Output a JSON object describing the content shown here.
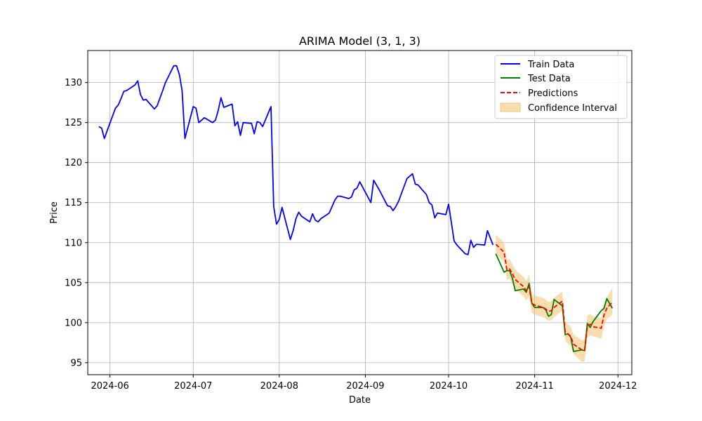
{
  "chart_data": {
    "type": "line",
    "title": "ARIMA Model (3, 1, 3)",
    "xlabel": "Date",
    "ylabel": "Price",
    "xlim": [
      "2024-05-24",
      "2024-12-06"
    ],
    "ylim": [
      93.5,
      134
    ],
    "x_ticks": [
      "2024-06-01",
      "2024-07-01",
      "2024-08-01",
      "2024-09-01",
      "2024-10-01",
      "2024-11-01",
      "2024-12-01"
    ],
    "x_tick_labels": [
      "2024-06",
      "2024-07",
      "2024-08",
      "2024-09",
      "2024-10",
      "2024-11",
      "2024-12"
    ],
    "y_ticks": [
      95,
      100,
      105,
      110,
      115,
      120,
      125,
      130
    ],
    "y_tick_labels": [
      "95",
      "100",
      "105",
      "110",
      "115",
      "120",
      "125",
      "130"
    ],
    "grid": true,
    "legend_position": "top-right",
    "legend": [
      "Train Data",
      "Test Data",
      "Predictions",
      "Confidence Interval"
    ],
    "colors": {
      "train": "#0000ff",
      "test": "#008000",
      "predictions": "#ff0000",
      "ci": "#f5c77a"
    },
    "series": [
      {
        "name": "Train Data",
        "x": [
          "2024-05-28",
          "2024-05-29",
          "2024-05-30",
          "2024-05-31",
          "2024-06-03",
          "2024-06-04",
          "2024-06-05",
          "2024-06-06",
          "2024-06-07",
          "2024-06-10",
          "2024-06-11",
          "2024-06-12",
          "2024-06-13",
          "2024-06-14",
          "2024-06-17",
          "2024-06-18",
          "2024-06-20",
          "2024-06-21",
          "2024-06-24",
          "2024-06-25",
          "2024-06-26",
          "2024-06-27",
          "2024-06-28",
          "2024-07-01",
          "2024-07-02",
          "2024-07-03",
          "2024-07-05",
          "2024-07-08",
          "2024-07-09",
          "2024-07-10",
          "2024-07-11",
          "2024-07-12",
          "2024-07-15",
          "2024-07-16",
          "2024-07-17",
          "2024-07-18",
          "2024-07-19",
          "2024-07-22",
          "2024-07-23",
          "2024-07-24",
          "2024-07-25",
          "2024-07-26",
          "2024-07-29",
          "2024-07-30",
          "2024-07-31",
          "2024-08-01",
          "2024-08-02",
          "2024-08-05",
          "2024-08-06",
          "2024-08-07",
          "2024-08-08",
          "2024-08-09",
          "2024-08-12",
          "2024-08-13",
          "2024-08-14",
          "2024-08-15",
          "2024-08-16",
          "2024-08-19",
          "2024-08-20",
          "2024-08-21",
          "2024-08-22",
          "2024-08-23",
          "2024-08-26",
          "2024-08-27",
          "2024-08-28",
          "2024-08-29",
          "2024-08-30",
          "2024-09-03",
          "2024-09-04",
          "2024-09-05",
          "2024-09-06",
          "2024-09-09",
          "2024-09-10",
          "2024-09-11",
          "2024-09-12",
          "2024-09-13",
          "2024-09-16",
          "2024-09-17",
          "2024-09-18",
          "2024-09-19",
          "2024-09-20",
          "2024-09-23",
          "2024-09-24",
          "2024-09-25",
          "2024-09-26",
          "2024-09-27",
          "2024-09-30",
          "2024-10-01",
          "2024-10-02",
          "2024-10-03",
          "2024-10-04",
          "2024-10-07",
          "2024-10-08",
          "2024-10-09",
          "2024-10-10",
          "2024-10-11",
          "2024-10-14",
          "2024-10-15",
          "2024-10-16",
          "2024-10-17"
        ],
        "y": [
          124.5,
          124.3,
          123.0,
          124.0,
          126.8,
          127.2,
          128.0,
          128.9,
          129.0,
          129.7,
          130.2,
          128.5,
          127.8,
          127.9,
          126.7,
          127.1,
          129.0,
          130.0,
          132.1,
          132.1,
          131.0,
          129.0,
          123.0,
          127.0,
          126.8,
          125.0,
          125.6,
          125.0,
          125.3,
          126.5,
          128.1,
          126.9,
          127.3,
          124.6,
          125.1,
          123.4,
          125.0,
          124.9,
          123.6,
          125.1,
          125.0,
          124.5,
          127.0,
          114.5,
          112.3,
          112.9,
          114.4,
          110.4,
          111.5,
          113.0,
          113.8,
          113.3,
          112.6,
          113.6,
          112.8,
          112.6,
          113.0,
          113.7,
          114.5,
          115.3,
          115.8,
          115.8,
          115.5,
          115.7,
          116.6,
          116.8,
          117.6,
          115.0,
          117.8,
          117.2,
          116.6,
          114.6,
          114.5,
          114.0,
          114.5,
          115.2,
          118.0,
          118.3,
          118.6,
          117.3,
          117.2,
          116.0,
          115.0,
          114.7,
          113.1,
          113.7,
          113.5,
          114.8,
          112.5,
          110.2,
          109.7,
          108.6,
          108.5,
          110.3,
          109.4,
          109.8,
          109.7,
          111.5,
          110.6,
          109.7
        ]
      },
      {
        "name": "Test Data",
        "x": [
          "2024-10-18",
          "2024-10-21",
          "2024-10-22",
          "2024-10-23",
          "2024-10-24",
          "2024-10-25",
          "2024-10-28",
          "2024-10-29",
          "2024-10-30",
          "2024-10-31",
          "2024-11-01",
          "2024-11-04",
          "2024-11-05",
          "2024-11-06",
          "2024-11-07",
          "2024-11-08",
          "2024-11-11",
          "2024-11-12",
          "2024-11-13",
          "2024-11-14",
          "2024-11-15",
          "2024-11-18",
          "2024-11-19",
          "2024-11-20",
          "2024-11-21",
          "2024-11-22",
          "2024-11-25",
          "2024-11-26",
          "2024-11-27",
          "2024-11-29"
        ],
        "y": [
          108.6,
          106.3,
          106.5,
          106.5,
          105.5,
          104.0,
          104.2,
          103.8,
          104.9,
          102.4,
          101.9,
          101.9,
          101.6,
          100.8,
          101.0,
          102.9,
          102.1,
          98.5,
          98.6,
          98.2,
          96.4,
          96.6,
          96.5,
          99.9,
          99.4,
          100.1,
          101.5,
          101.8,
          103.0,
          101.8
        ]
      },
      {
        "name": "Predictions",
        "x": [
          "2024-10-18",
          "2024-10-21",
          "2024-10-22",
          "2024-10-23",
          "2024-10-24",
          "2024-10-25",
          "2024-10-28",
          "2024-10-29",
          "2024-10-30",
          "2024-10-31",
          "2024-11-01",
          "2024-11-04",
          "2024-11-05",
          "2024-11-06",
          "2024-11-07",
          "2024-11-08",
          "2024-11-11",
          "2024-11-12",
          "2024-11-13",
          "2024-11-14",
          "2024-11-15",
          "2024-11-18",
          "2024-11-19",
          "2024-11-20",
          "2024-11-21",
          "2024-11-22",
          "2024-11-25",
          "2024-11-26",
          "2024-11-27",
          "2024-11-29"
        ],
        "y": [
          109.8,
          108.8,
          106.6,
          106.7,
          106.1,
          105.4,
          104.5,
          104.0,
          104.5,
          102.4,
          102.2,
          101.9,
          101.7,
          101.4,
          101.5,
          101.9,
          102.7,
          98.9,
          98.6,
          98.3,
          97.3,
          96.6,
          96.6,
          99.5,
          99.8,
          99.5,
          99.3,
          101.0,
          101.8,
          102.6
        ]
      },
      {
        "name": "Confidence Interval",
        "x": [
          "2024-10-18",
          "2024-10-21",
          "2024-10-22",
          "2024-10-23",
          "2024-10-24",
          "2024-10-25",
          "2024-10-28",
          "2024-10-29",
          "2024-10-30",
          "2024-10-31",
          "2024-11-01",
          "2024-11-04",
          "2024-11-05",
          "2024-11-06",
          "2024-11-07",
          "2024-11-08",
          "2024-11-11",
          "2024-11-12",
          "2024-11-13",
          "2024-11-14",
          "2024-11-15",
          "2024-11-18",
          "2024-11-19",
          "2024-11-20",
          "2024-11-21",
          "2024-11-22",
          "2024-11-25",
          "2024-11-26",
          "2024-11-27",
          "2024-11-29"
        ],
        "lower": [
          108.6,
          107.6,
          105.4,
          105.5,
          104.9,
          104.2,
          103.3,
          102.8,
          103.3,
          101.2,
          101.0,
          100.7,
          100.5,
          100.2,
          100.3,
          100.7,
          101.5,
          97.7,
          97.4,
          97.1,
          96.1,
          95.1,
          95.2,
          98.1,
          98.4,
          98.3,
          98.0,
          99.6,
          100.4,
          101.0
        ],
        "upper": [
          111.0,
          110.0,
          107.8,
          107.9,
          107.3,
          106.6,
          105.7,
          105.2,
          106.0,
          103.6,
          103.4,
          103.1,
          102.9,
          102.6,
          102.7,
          103.1,
          103.9,
          100.1,
          99.8,
          99.5,
          98.5,
          97.8,
          97.9,
          100.9,
          101.1,
          100.8,
          100.6,
          102.4,
          103.2,
          104.3
        ]
      }
    ]
  }
}
